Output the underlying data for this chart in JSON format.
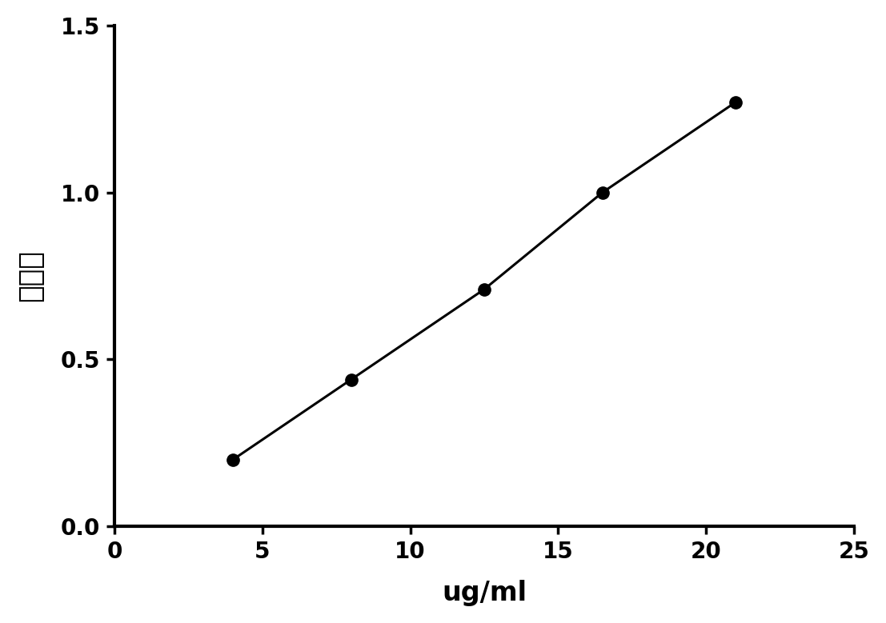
{
  "x": [
    4,
    8,
    12.5,
    16.5,
    21
  ],
  "y": [
    0.2,
    0.44,
    0.71,
    1.0,
    1.27
  ],
  "xlabel": "ug/ml",
  "ylabel": "吸光度",
  "xlim": [
    0,
    25
  ],
  "ylim": [
    0.0,
    1.5
  ],
  "xticks": [
    0,
    5,
    10,
    15,
    20,
    25
  ],
  "yticks": [
    0.0,
    0.5,
    1.0,
    1.5
  ],
  "line_color": "#000000",
  "marker_color": "#000000",
  "marker_size": 11,
  "line_width": 2.2,
  "background_color": "#ffffff",
  "xlabel_fontsize": 24,
  "ylabel_fontsize": 26,
  "tick_fontsize": 20,
  "axis_linewidth": 3.0
}
